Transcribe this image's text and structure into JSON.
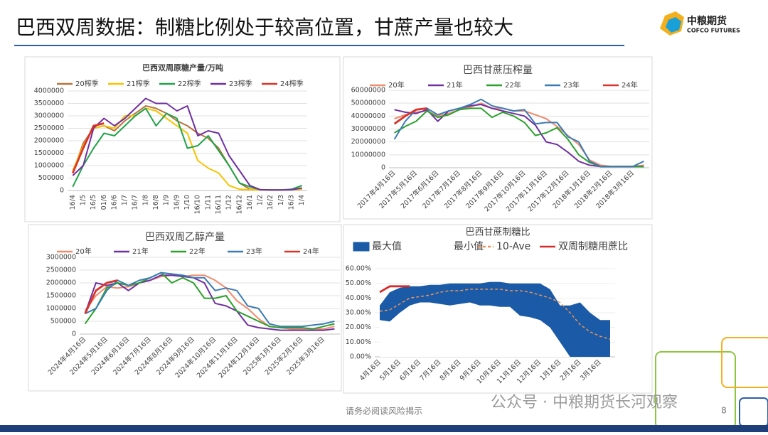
{
  "header": {
    "title": "巴西双周数据：制糖比例处于较高位置，甘蔗产量也较大",
    "logo_name": "中粮期货",
    "logo_en": "COFCO FUTURES"
  },
  "footer": {
    "note": "请务必阅读风险揭示",
    "page": "8",
    "watermark": "公众号 · 中粮期货长河观察"
  },
  "chart_data": [
    {
      "type": "line",
      "title": "巴西双周原糖产量/万吨",
      "categories": [
        "16/4",
        "1/5",
        "16/5",
        "01/6",
        "16/6",
        "1/7",
        "16/7",
        "1/8",
        "16/8",
        "1/9",
        "16/9",
        "1/10",
        "16/10",
        "1/11",
        "16/11",
        "1/12",
        "16/12",
        "16/1",
        "1/2",
        "16/2",
        "1/3",
        "16/3",
        "1/4"
      ],
      "ylim": [
        0,
        4000000
      ],
      "yticks": [
        0,
        500000,
        1000000,
        1500000,
        2000000,
        2500000,
        3000000,
        3500000,
        4000000
      ],
      "series": [
        {
          "name": "20榨季",
          "color": "#b8733c",
          "values": [
            700000,
            1900000,
            2500000,
            2600000,
            2400000,
            2800000,
            3100000,
            3400000,
            3300000,
            3100000,
            2800000,
            2600000,
            2300000,
            2100000,
            1700000,
            1000000,
            300000,
            50000,
            30000,
            20000,
            20000,
            30000,
            50000
          ]
        },
        {
          "name": "21榨季",
          "color": "#f5c400",
          "values": [
            800000,
            1800000,
            2500000,
            2600000,
            2500000,
            3000000,
            3000000,
            3300000,
            3200000,
            2900000,
            2600000,
            2300000,
            1200000,
            900000,
            700000,
            200000,
            50000,
            30000,
            20000,
            20000,
            20000,
            30000,
            50000
          ]
        },
        {
          "name": "22榨季",
          "color": "#22a34a",
          "values": [
            150000,
            1000000,
            1700000,
            2300000,
            2200000,
            2600000,
            3000000,
            3300000,
            2600000,
            3100000,
            2900000,
            1700000,
            1800000,
            2200000,
            1600000,
            1000000,
            300000,
            150000,
            30000,
            20000,
            20000,
            50000,
            200000
          ]
        },
        {
          "name": "23榨季",
          "color": "#7030a0",
          "values": [
            600000,
            1000000,
            2500000,
            2900000,
            2600000,
            2900000,
            3300000,
            3700000,
            3500000,
            3500000,
            3200000,
            3400000,
            2200000,
            2400000,
            2300000,
            1400000,
            800000,
            200000,
            30000,
            20000,
            20000,
            30000,
            100000
          ]
        },
        {
          "name": "24榨季",
          "color": "#d9342b",
          "values": [
            700000,
            1700000,
            2600000,
            2700000,
            null,
            null,
            null,
            null,
            null,
            null,
            null,
            null,
            null,
            null,
            null,
            null,
            null,
            null,
            null,
            null,
            null,
            null,
            null
          ]
        }
      ]
    },
    {
      "type": "line",
      "title": "巴西甘蔗压榨量",
      "categories": [
        "2017年4月16日",
        null,
        "2017年5月16日",
        null,
        "2017年6月16日",
        null,
        "2017年7月16日",
        null,
        "2017年8月16日",
        null,
        "2017年9月16日",
        null,
        "2017年10月16日",
        null,
        "2017年11月16日",
        null,
        "2017年12月16日",
        null,
        "2018年1月16日",
        null,
        "2018年2月16日",
        null,
        "2018年3月16日",
        null
      ],
      "ylim": [
        0,
        60000000
      ],
      "yticks": [
        0,
        10000000,
        20000000,
        30000000,
        40000000,
        50000000,
        60000000
      ],
      "series": [
        {
          "name": "20年",
          "color": "#f08c6e",
          "values": [
            38000000,
            41000000,
            43000000,
            44000000,
            40000000,
            42000000,
            45000000,
            47000000,
            50000000,
            46000000,
            46000000,
            44000000,
            44000000,
            41000000,
            38000000,
            32000000,
            25000000,
            18000000,
            6000000,
            2000000,
            1000000,
            1000000,
            1000000,
            2000000
          ]
        },
        {
          "name": "21年",
          "color": "#7030a0",
          "values": [
            45000000,
            43000000,
            42000000,
            45000000,
            36000000,
            44000000,
            46000000,
            48000000,
            49000000,
            46000000,
            44000000,
            42000000,
            40000000,
            33000000,
            20000000,
            18000000,
            12000000,
            5000000,
            2000000,
            1000000,
            1000000,
            1000000,
            1000000,
            1000000
          ]
        },
        {
          "name": "22年",
          "color": "#2ca02c",
          "values": [
            27000000,
            32000000,
            36000000,
            44000000,
            39000000,
            41000000,
            45000000,
            46000000,
            46000000,
            39000000,
            43000000,
            40000000,
            35000000,
            25000000,
            27000000,
            31000000,
            22000000,
            10000000,
            4000000,
            1000000,
            1000000,
            1000000,
            1000000,
            1000000
          ]
        },
        {
          "name": "23年",
          "color": "#3c7bb5",
          "values": [
            22000000,
            36000000,
            45000000,
            46000000,
            41000000,
            44000000,
            46000000,
            49000000,
            53000000,
            48000000,
            46000000,
            44000000,
            45000000,
            34000000,
            35000000,
            35000000,
            24000000,
            20000000,
            5000000,
            1000000,
            1000000,
            1000000,
            1000000,
            5000000
          ]
        },
        {
          "name": "24年",
          "color": "#d9342b",
          "values": [
            34000000,
            40000000,
            45000000,
            46000000,
            null,
            null,
            null,
            null,
            null,
            null,
            null,
            null,
            null,
            null,
            null,
            null,
            null,
            null,
            null,
            null,
            null,
            null,
            null,
            null
          ]
        }
      ]
    },
    {
      "type": "line",
      "title": "巴西双周乙醇产量",
      "categories": [
        "2024年4月16日",
        null,
        "2024年5月16日",
        null,
        "2024年6月16日",
        null,
        "2024年7月16日",
        null,
        "2024年8月16日",
        null,
        "2024年9月16日",
        null,
        "2024年10月16日",
        null,
        "2024年11月16日",
        null,
        "2024年12月16日",
        null,
        "2025年1月16日",
        null,
        "2025年2月16日",
        null,
        "2025年3月16日",
        null
      ],
      "ylim": [
        0,
        3000000
      ],
      "yticks": [
        0,
        500000,
        1000000,
        1500000,
        2000000,
        2500000,
        3000000
      ],
      "series": [
        {
          "name": "20年",
          "color": "#f08c6e",
          "values": [
            900000,
            1500000,
            1850000,
            1800000,
            1850000,
            2000000,
            2100000,
            2250000,
            2300000,
            2250000,
            2300000,
            2300000,
            2100000,
            1800000,
            1300000,
            1000000,
            600000,
            300000,
            250000,
            200000,
            200000,
            200000,
            200000,
            300000
          ]
        },
        {
          "name": "21年",
          "color": "#7030a0",
          "values": [
            800000,
            2000000,
            1900000,
            2000000,
            1700000,
            2000000,
            2100000,
            2300000,
            2300000,
            2250000,
            2200000,
            2000000,
            1200000,
            1100000,
            900000,
            350000,
            250000,
            200000,
            150000,
            150000,
            150000,
            150000,
            150000,
            200000
          ]
        },
        {
          "name": "22年",
          "color": "#2ca02c",
          "values": [
            400000,
            1000000,
            1800000,
            2000000,
            1900000,
            2000000,
            2200000,
            2400000,
            2000000,
            2200000,
            2000000,
            1400000,
            1400000,
            1500000,
            900000,
            700000,
            500000,
            300000,
            250000,
            250000,
            250000,
            200000,
            300000,
            400000
          ]
        },
        {
          "name": "23年",
          "color": "#3c7bb5",
          "values": [
            800000,
            1000000,
            1700000,
            2100000,
            1900000,
            2100000,
            2200000,
            2400000,
            2350000,
            2300000,
            2200000,
            2200000,
            1700000,
            1800000,
            1700000,
            1100000,
            1000000,
            400000,
            300000,
            300000,
            300000,
            350000,
            400000,
            500000
          ]
        },
        {
          "name": "24年",
          "color": "#d9342b",
          "values": [
            800000,
            1700000,
            2000000,
            2100000,
            null,
            null,
            null,
            null,
            null,
            null,
            null,
            null,
            null,
            null,
            null,
            null,
            null,
            null,
            null,
            null,
            null,
            null,
            null,
            null
          ]
        }
      ]
    },
    {
      "type": "area",
      "title": "巴西甘蔗制糖比",
      "categories": [
        "4月16日",
        null,
        "5月16日",
        null,
        "6月16日",
        null,
        "7月16日",
        null,
        "8月16日",
        null,
        "9月16日",
        null,
        "10月16日",
        null,
        "11月16日",
        null,
        "12月16日",
        null,
        "1月16日",
        null,
        "2月16日",
        null,
        "3月16日",
        null
      ],
      "ylim": [
        0,
        60
      ],
      "yticks": [
        {
          "value": 0,
          "label": "0.00%"
        },
        {
          "value": 10,
          "label": "10.00%"
        },
        {
          "value": 20,
          "label": "20.00%"
        },
        {
          "value": 30,
          "label": "30.00%"
        },
        {
          "value": 40,
          "label": "40.00%"
        },
        {
          "value": 50,
          "label": "50.00%"
        },
        {
          "value": 60,
          "label": "60.00%"
        }
      ],
      "series": [
        {
          "name": "最大值",
          "color": "#1b5aa6",
          "kind": "area",
          "values": [
            35,
            44,
            47,
            48,
            48,
            49,
            49,
            50,
            50,
            50,
            50,
            51,
            51,
            50,
            50,
            50,
            50,
            46,
            35,
            35,
            37,
            30,
            25,
            25
          ]
        },
        {
          "name": "最小值",
          "color": "#ffffff",
          "kind": "area",
          "values": [
            25,
            24,
            30,
            35,
            37,
            37,
            36,
            35,
            36,
            37,
            35,
            35,
            34,
            34,
            28,
            27,
            25,
            20,
            10,
            0,
            0,
            0,
            0,
            0
          ]
        },
        {
          "name": "10-Ave",
          "color": "#e8955a",
          "kind": "dashed",
          "values": [
            31,
            32,
            36,
            40,
            41,
            42,
            44,
            45,
            45,
            46,
            46,
            46,
            46,
            45,
            45,
            44,
            42,
            40,
            37,
            30,
            22,
            17,
            14,
            12
          ]
        },
        {
          "name": "双周制糖用蔗比",
          "color": "#d62b2b",
          "kind": "line",
          "values": [
            44,
            48,
            48,
            48,
            null,
            null,
            null,
            null,
            null,
            null,
            null,
            null,
            null,
            null,
            null,
            null,
            null,
            null,
            null,
            null,
            null,
            null,
            null,
            null
          ]
        }
      ]
    }
  ]
}
